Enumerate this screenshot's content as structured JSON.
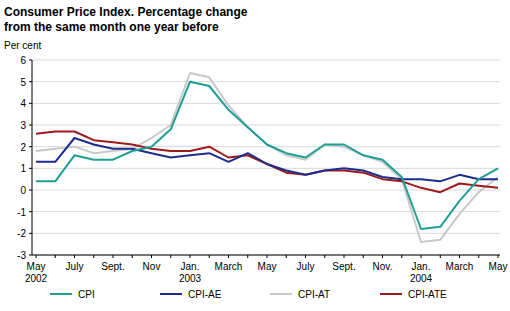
{
  "chart_data": {
    "type": "line",
    "title": "Consumer Price Index. Percentage change from the same month one year before",
    "y_label": "Per cent",
    "categories": [
      "May\n2002",
      null,
      "July",
      null,
      "Sept.",
      null,
      "Nov",
      null,
      "Jan.\n2003",
      null,
      "March",
      null,
      "May",
      null,
      "July",
      null,
      "Sept.",
      null,
      "Nov.",
      null,
      "Jan.\n2004",
      null,
      "March",
      null,
      "May"
    ],
    "series": [
      {
        "name": "CPI-AT",
        "color": "#c8c8c8",
        "values": [
          1.8,
          1.9,
          2.0,
          1.7,
          1.8,
          1.9,
          2.4,
          3.0,
          5.4,
          5.2,
          3.9,
          2.9,
          2.1,
          1.6,
          1.4,
          2.1,
          2.0,
          1.6,
          1.3,
          0.5,
          -2.4,
          -2.3,
          -1.1,
          -0.1,
          0.6
        ]
      },
      {
        "name": "CPI-ATE",
        "color": "#9e1b1b",
        "values": [
          2.6,
          2.7,
          2.7,
          2.3,
          2.2,
          2.1,
          1.9,
          1.8,
          1.8,
          2.0,
          1.5,
          1.6,
          1.2,
          0.8,
          0.7,
          0.9,
          0.9,
          0.8,
          0.5,
          0.4,
          0.1,
          -0.1,
          0.3,
          0.2,
          0.1
        ]
      },
      {
        "name": "CPI-AE",
        "color": "#1c2d8c",
        "values": [
          1.3,
          1.3,
          2.4,
          2.1,
          1.9,
          1.9,
          1.7,
          1.5,
          1.6,
          1.7,
          1.3,
          1.7,
          1.2,
          0.9,
          0.7,
          0.9,
          1.0,
          0.9,
          0.6,
          0.5,
          0.5,
          0.4,
          0.7,
          0.5,
          0.5
        ]
      },
      {
        "name": "CPI",
        "color": "#1f9e94",
        "values": [
          0.4,
          0.4,
          1.6,
          1.4,
          1.4,
          1.8,
          2.0,
          2.8,
          5.0,
          4.8,
          3.7,
          2.9,
          2.1,
          1.7,
          1.5,
          2.1,
          2.1,
          1.6,
          1.4,
          0.6,
          -1.8,
          -1.7,
          -0.5,
          0.5,
          1.0
        ]
      }
    ],
    "legend_order": [
      "CPI",
      "CPI-AE",
      "CPI-AT",
      "CPI-ATE"
    ],
    "ylim": [
      -3,
      6
    ],
    "yticks": [
      -3,
      -2,
      -1,
      0,
      1,
      2,
      3,
      4,
      5,
      6
    ],
    "grid": true,
    "legend": "bottom"
  }
}
